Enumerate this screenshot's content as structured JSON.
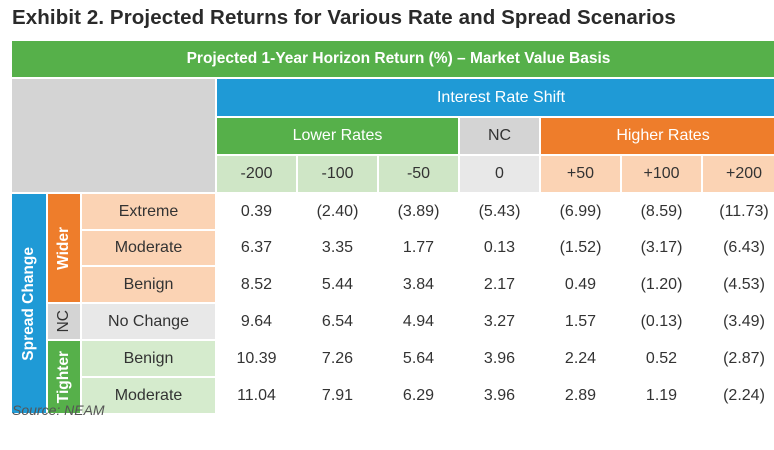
{
  "title": "Exhibit 2. Projected Returns for Various Rate and Spread Scenarios",
  "banner": "Projected 1-Year Horizon Return (%) – Market Value Basis",
  "header": {
    "interest_rate_shift": "Interest Rate Shift",
    "lower_rates": "Lower Rates",
    "nc": "NC",
    "higher_rates": "Higher Rates",
    "shifts": [
      "-200",
      "-100",
      "-50",
      "0",
      "+50",
      "+100",
      "+200"
    ]
  },
  "side": {
    "spread_change": "Spread Change",
    "wider": "Wider",
    "nc": "NC",
    "tighter": "Tighter"
  },
  "rows": [
    {
      "label": "Extreme",
      "values": [
        "0.39",
        "(2.40)",
        "(3.89)",
        "(5.43)",
        "(6.99)",
        "(8.59)",
        "(11.73)"
      ]
    },
    {
      "label": "Moderate",
      "values": [
        "6.37",
        "3.35",
        "1.77",
        "0.13",
        "(1.52)",
        "(3.17)",
        "(6.43)"
      ]
    },
    {
      "label": "Benign",
      "values": [
        "8.52",
        "5.44",
        "3.84",
        "2.17",
        "0.49",
        "(1.20)",
        "(4.53)"
      ]
    },
    {
      "label": "No Change",
      "values": [
        "9.64",
        "6.54",
        "4.94",
        "3.27",
        "1.57",
        "(0.13)",
        "(3.49)"
      ]
    },
    {
      "label": "Benign",
      "values": [
        "10.39",
        "7.26",
        "5.64",
        "3.96",
        "2.24",
        "0.52",
        "(2.87)"
      ]
    },
    {
      "label": "Moderate",
      "values": [
        "11.04",
        "7.91",
        "6.29",
        "3.96",
        "2.89",
        "1.19",
        "(2.24)"
      ]
    }
  ],
  "source": "Source: NEAM",
  "colors": {
    "green": "#56b04a",
    "blue": "#1f9ad6",
    "orange": "#ee7d2b",
    "gray": "#d4d4d4"
  }
}
